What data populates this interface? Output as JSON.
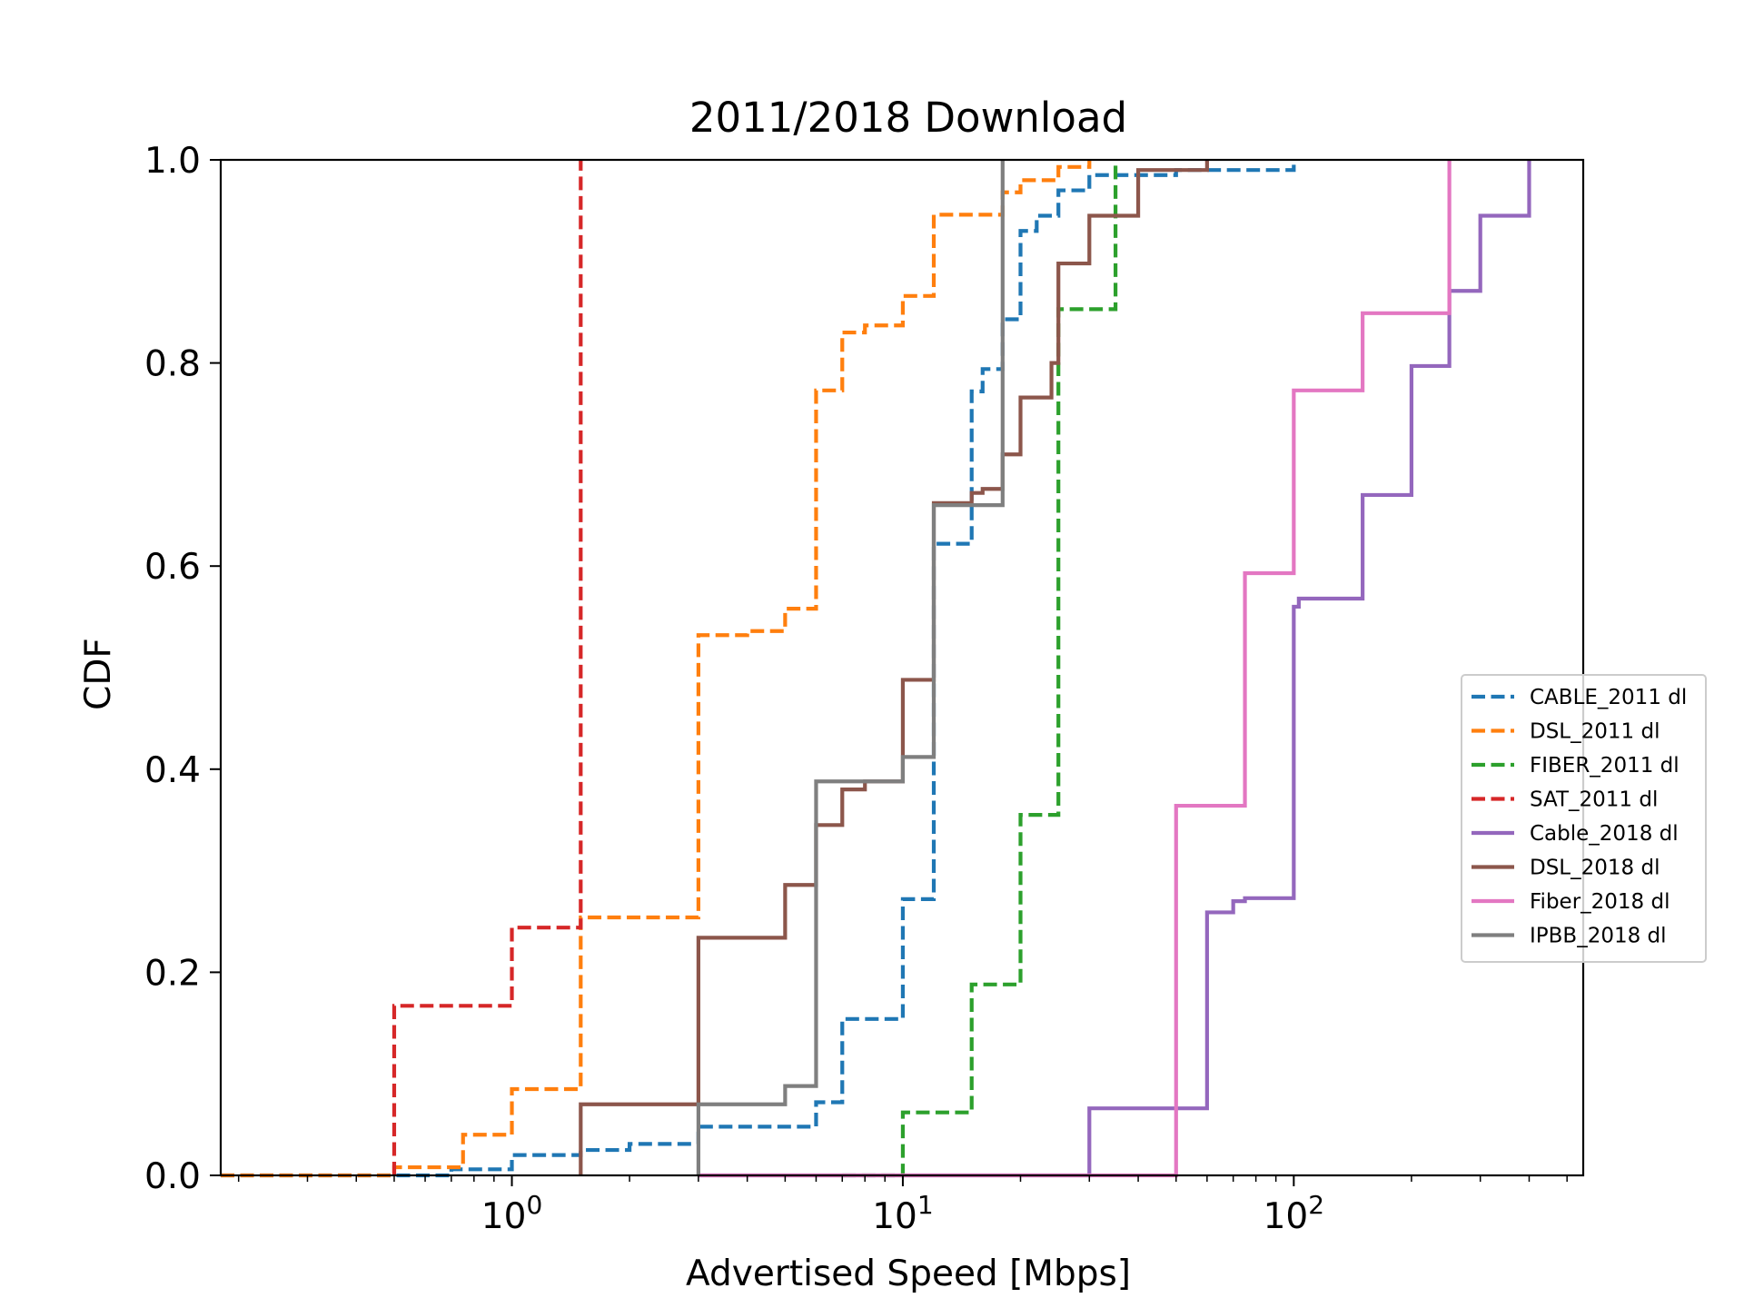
{
  "chart_data": {
    "type": "line",
    "subtype": "step-cdf",
    "title": "2011/2018 Download",
    "xlabel": "Advertised Speed [Mbps]",
    "ylabel": "CDF",
    "xscale": "log",
    "xlim": [
      0.18,
      550
    ],
    "ylim": [
      0,
      1.0
    ],
    "x_ticks": [
      {
        "value": 1,
        "base": "10",
        "exp": "0"
      },
      {
        "value": 10,
        "base": "10",
        "exp": "1"
      },
      {
        "value": 100,
        "base": "10",
        "exp": "2"
      }
    ],
    "y_ticks": [
      {
        "value": 0,
        "label": "0.0"
      },
      {
        "value": 0.2,
        "label": "0.2"
      },
      {
        "value": 0.4,
        "label": "0.4"
      },
      {
        "value": 0.6,
        "label": "0.6"
      },
      {
        "value": 0.8,
        "label": "0.8"
      },
      {
        "value": 1.0,
        "label": "1.0"
      }
    ],
    "grid": false,
    "legend_position": "center-right",
    "series": [
      {
        "name": "CABLE_2011 dl",
        "color": "#1f77b4",
        "style": "dashed",
        "points": [
          [
            0.18,
            0
          ],
          [
            0.7,
            0
          ],
          [
            0.7,
            0.006
          ],
          [
            1,
            0.006
          ],
          [
            1,
            0.02
          ],
          [
            1.5,
            0.02
          ],
          [
            1.5,
            0.025
          ],
          [
            2,
            0.025
          ],
          [
            2,
            0.031
          ],
          [
            3,
            0.031
          ],
          [
            3,
            0.048
          ],
          [
            6,
            0.048
          ],
          [
            6,
            0.072
          ],
          [
            7,
            0.072
          ],
          [
            7,
            0.154
          ],
          [
            10,
            0.154
          ],
          [
            10,
            0.272
          ],
          [
            12,
            0.272
          ],
          [
            12,
            0.622
          ],
          [
            15,
            0.622
          ],
          [
            15,
            0.772
          ],
          [
            16,
            0.772
          ],
          [
            16,
            0.794
          ],
          [
            18,
            0.794
          ],
          [
            18,
            0.843
          ],
          [
            20,
            0.843
          ],
          [
            20,
            0.93
          ],
          [
            22,
            0.93
          ],
          [
            22,
            0.945
          ],
          [
            25,
            0.945
          ],
          [
            25,
            0.97
          ],
          [
            30,
            0.97
          ],
          [
            30,
            0.985
          ],
          [
            50,
            0.985
          ],
          [
            50,
            0.99
          ],
          [
            100,
            0.99
          ],
          [
            100,
            1.0
          ]
        ]
      },
      {
        "name": "DSL_2011 dl",
        "color": "#ff7f0e",
        "style": "dashed",
        "points": [
          [
            0.18,
            0
          ],
          [
            0.5,
            0
          ],
          [
            0.5,
            0.003
          ],
          [
            0.5,
            0.008
          ],
          [
            0.75,
            0.008
          ],
          [
            0.75,
            0.04
          ],
          [
            1,
            0.04
          ],
          [
            1,
            0.085
          ],
          [
            1.5,
            0.085
          ],
          [
            1.5,
            0.254
          ],
          [
            3,
            0.254
          ],
          [
            3,
            0.532
          ],
          [
            4,
            0.532
          ],
          [
            4,
            0.536
          ],
          [
            5,
            0.536
          ],
          [
            5,
            0.558
          ],
          [
            6,
            0.558
          ],
          [
            6,
            0.773
          ],
          [
            7,
            0.773
          ],
          [
            7,
            0.83
          ],
          [
            8,
            0.83
          ],
          [
            8,
            0.837
          ],
          [
            10,
            0.837
          ],
          [
            10,
            0.866
          ],
          [
            12,
            0.866
          ],
          [
            12,
            0.946
          ],
          [
            18,
            0.946
          ],
          [
            18,
            0.968
          ],
          [
            20,
            0.968
          ],
          [
            20,
            0.98
          ],
          [
            25,
            0.98
          ],
          [
            25,
            0.993
          ],
          [
            30,
            0.993
          ],
          [
            30,
            1.0
          ]
        ]
      },
      {
        "name": "FIBER_2011 dl",
        "color": "#2ca02c",
        "style": "dashed",
        "points": [
          [
            7,
            0
          ],
          [
            10,
            0
          ],
          [
            10,
            0.062
          ],
          [
            15,
            0.062
          ],
          [
            15,
            0.188
          ],
          [
            20,
            0.188
          ],
          [
            20,
            0.355
          ],
          [
            25,
            0.355
          ],
          [
            25,
            0.853
          ],
          [
            35,
            0.853
          ],
          [
            35,
            0.992
          ],
          [
            35,
            1.0
          ]
        ]
      },
      {
        "name": "SAT_2011 dl",
        "color": "#d62728",
        "style": "dashed",
        "points": [
          [
            0.5,
            0
          ],
          [
            0.5,
            0.167
          ],
          [
            1,
            0.167
          ],
          [
            1,
            0.244
          ],
          [
            1.5,
            0.244
          ],
          [
            1.5,
            1.0
          ]
        ]
      },
      {
        "name": "Cable_2018 dl",
        "color": "#9467bd",
        "style": "solid",
        "points": [
          [
            3,
            0
          ],
          [
            30,
            0
          ],
          [
            30,
            0.066
          ],
          [
            60,
            0.066
          ],
          [
            60,
            0.259
          ],
          [
            70,
            0.259
          ],
          [
            70,
            0.27
          ],
          [
            75,
            0.27
          ],
          [
            75,
            0.273
          ],
          [
            100,
            0.273
          ],
          [
            100,
            0.56
          ],
          [
            103,
            0.56
          ],
          [
            103,
            0.568
          ],
          [
            150,
            0.568
          ],
          [
            150,
            0.67
          ],
          [
            200,
            0.67
          ],
          [
            200,
            0.797
          ],
          [
            250,
            0.797
          ],
          [
            250,
            0.871
          ],
          [
            300,
            0.871
          ],
          [
            300,
            0.945
          ],
          [
            400,
            0.945
          ],
          [
            400,
            1.0
          ]
        ]
      },
      {
        "name": "DSL_2018 dl",
        "color": "#8c564b",
        "style": "solid",
        "points": [
          [
            1.5,
            0
          ],
          [
            1.5,
            0.07
          ],
          [
            3,
            0.07
          ],
          [
            3,
            0.234
          ],
          [
            5,
            0.234
          ],
          [
            5,
            0.286
          ],
          [
            6,
            0.286
          ],
          [
            6,
            0.345
          ],
          [
            7,
            0.345
          ],
          [
            7,
            0.38
          ],
          [
            8,
            0.38
          ],
          [
            8,
            0.388
          ],
          [
            10,
            0.388
          ],
          [
            10,
            0.488
          ],
          [
            12,
            0.488
          ],
          [
            12,
            0.662
          ],
          [
            15,
            0.662
          ],
          [
            15,
            0.672
          ],
          [
            16,
            0.672
          ],
          [
            16,
            0.676
          ],
          [
            18,
            0.676
          ],
          [
            18,
            0.71
          ],
          [
            20,
            0.71
          ],
          [
            20,
            0.766
          ],
          [
            24,
            0.766
          ],
          [
            24,
            0.8
          ],
          [
            25,
            0.8
          ],
          [
            25,
            0.898
          ],
          [
            30,
            0.898
          ],
          [
            30,
            0.945
          ],
          [
            40,
            0.945
          ],
          [
            40,
            0.99
          ],
          [
            60,
            0.99
          ],
          [
            60,
            1.0
          ]
        ]
      },
      {
        "name": "Fiber_2018 dl",
        "color": "#e377c2",
        "style": "solid",
        "points": [
          [
            3,
            0
          ],
          [
            50,
            0
          ],
          [
            50,
            0.364
          ],
          [
            75,
            0.364
          ],
          [
            75,
            0.593
          ],
          [
            100,
            0.593
          ],
          [
            100,
            0.773
          ],
          [
            150,
            0.773
          ],
          [
            150,
            0.849
          ],
          [
            250,
            0.849
          ],
          [
            250,
            1.0
          ]
        ]
      },
      {
        "name": "IPBB_2018 dl",
        "color": "#7f7f7f",
        "style": "solid",
        "points": [
          [
            3,
            0
          ],
          [
            3,
            0.07
          ],
          [
            5,
            0.07
          ],
          [
            5,
            0.088
          ],
          [
            6,
            0.088
          ],
          [
            6,
            0.388
          ],
          [
            10,
            0.388
          ],
          [
            10,
            0.412
          ],
          [
            12,
            0.412
          ],
          [
            12,
            0.66
          ],
          [
            18,
            0.66
          ],
          [
            18,
            1.0
          ]
        ]
      }
    ]
  }
}
